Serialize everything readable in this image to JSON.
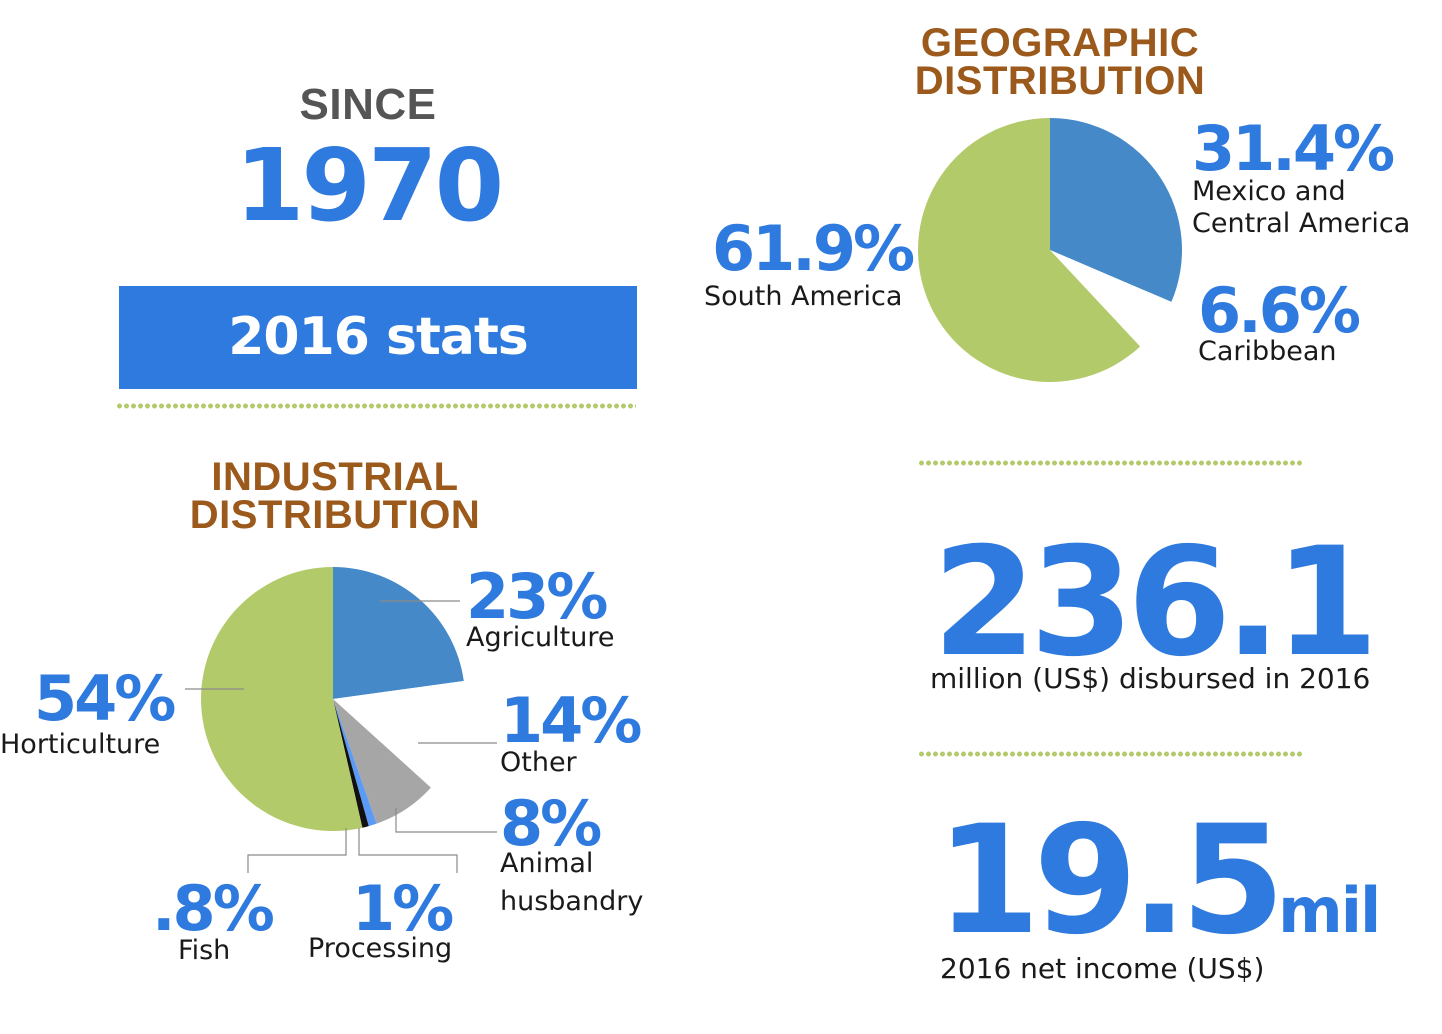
{
  "since": {
    "label": "SINCE",
    "year": "1970"
  },
  "banner": {
    "text": "2016 stats"
  },
  "industrial": {
    "title_line1": "INDUSTRIAL",
    "title_line2": "DISTRIBUTION"
  },
  "geographic": {
    "title_line1": "GEOGRAPHIC",
    "title_line2": "DISTRIBUTION"
  },
  "disbursed": {
    "value": "236.1",
    "caption": "million (US$) disbursed in 2016"
  },
  "net_income": {
    "value": "19.5",
    "unit": "mil",
    "caption": "2016 net income (US$)"
  },
  "colors": {
    "accent_blue": "#2f7ade",
    "heading_brown": "#9b5a1c",
    "dots_green": "#b3ca6b",
    "slice_blue": "#4589c8",
    "slice_green": "#b3ca6b",
    "slice_gray": "#a6a6a6",
    "slice_bright_blue": "#5b9bf5",
    "slice_black": "#111111",
    "slice_white": "#ffffff"
  },
  "chart_data": [
    {
      "type": "pie",
      "title": "INDUSTRIAL DISTRIBUTION",
      "slices": [
        {
          "pct": "23%",
          "label": "Agriculture",
          "value": 23,
          "color": "#4589c8"
        },
        {
          "pct": "14%",
          "label": "Other",
          "value": 14,
          "color": "#ffffff"
        },
        {
          "pct": "8%",
          "label": "Animal husbandry",
          "label_line1": "Animal",
          "label_line2": "husbandry",
          "value": 8,
          "color": "#a6a6a6"
        },
        {
          "pct": "1%",
          "label": "Processing",
          "value": 1,
          "color": "#5b9bf5"
        },
        {
          "pct": ".8%",
          "label": "Fish",
          "value": 0.8,
          "color": "#111111"
        },
        {
          "pct": "54%",
          "label": "Horticulture",
          "value": 54,
          "color": "#b3ca6b"
        }
      ]
    },
    {
      "type": "pie",
      "title": "GEOGRAPHIC DISTRIBUTION",
      "slices": [
        {
          "pct": "31.4%",
          "label": "Mexico and Central America",
          "label_line1": "Mexico and",
          "label_line2": "Central America",
          "value": 31.4,
          "color": "#4589c8"
        },
        {
          "pct": "6.6%",
          "label": "Caribbean",
          "value": 6.6,
          "color": "#ffffff"
        },
        {
          "pct": "61.9%",
          "label": "South America",
          "value": 61.9,
          "color": "#b3ca6b"
        }
      ]
    }
  ]
}
